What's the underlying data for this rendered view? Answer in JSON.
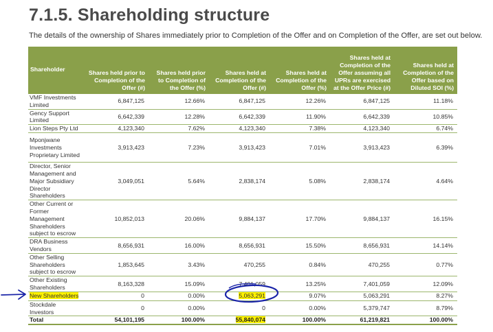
{
  "heading": "7.1.5.  Shareholding structure",
  "intro": "The details of the ownership of Shares immediately prior to Completion of the Offer and on Completion of the Offer, are set out below.",
  "columns": [
    "Shareholder",
    "Shares held prior to Completion of the Offer (#)",
    "Shares held prior to Completion of the Offer (%)",
    "Shares held at Completion of the Offer (#)",
    "Shares held at Completion of the Offer (%)",
    "Shares held at Completion of the Offer assuming all UPRs are exercised at the Offer Price (#)",
    "Shares held at Completion of the Offer based on Diluted SOI (%)"
  ],
  "rows": [
    {
      "name": "VMF Investments Limited",
      "v": [
        "6,847,125",
        "12.66%",
        "6,847,125",
        "12.26%",
        "6,847,125",
        "11.18%"
      ]
    },
    {
      "name": "Gency Support Limited",
      "v": [
        "6,642,339",
        "12.28%",
        "6,642,339",
        "11.90%",
        "6,642,339",
        "10.85%"
      ]
    },
    {
      "name": "Lion Steps Pty Ltd",
      "v": [
        "4,123,340",
        "7.62%",
        "4,123,340",
        "7.38%",
        "4,123,340",
        "6.74%"
      ]
    },
    {
      "name": "Mponjwane Investments Proprietary Limited",
      "v": [
        "3,913,423",
        "7.23%",
        "3,913,423",
        "7.01%",
        "3,913,423",
        "6.39%"
      ]
    },
    {
      "name": "Director, Senior Management and Major Subsidiary Director Shareholders",
      "v": [
        "3,049,051",
        "5.64%",
        "2,838,174",
        "5.08%",
        "2,838,174",
        "4.64%"
      ]
    },
    {
      "name": "Other Current or Former Management Shareholders subject to escrow",
      "v": [
        "10,852,013",
        "20.06%",
        "9,884,137",
        "17.70%",
        "9,884,137",
        "16.15%"
      ]
    },
    {
      "name": "DRA Business Vendors",
      "v": [
        "8,656,931",
        "16.00%",
        "8,656,931",
        "15.50%",
        "8,656,931",
        "14.14%"
      ]
    },
    {
      "name": "Other Selling Shareholders subject to escrow",
      "v": [
        "1,853,645",
        "3.43%",
        "470,255",
        "0.84%",
        "470,255",
        "0.77%"
      ]
    },
    {
      "name": "Other Existing Shareholders",
      "v": [
        "8,163,328",
        "15.09%",
        "7,401,059",
        "13.25%",
        "7,401,059",
        "12.09%"
      ]
    },
    {
      "name": "New Shareholders",
      "v": [
        "0",
        "0.00%",
        "5,063,291",
        "9.07%",
        "5,063,291",
        "8.27%"
      ]
    },
    {
      "name": "Stockdale Investors",
      "v": [
        "0",
        "0.00%",
        "0",
        "0.00%",
        "5,379,747",
        "8.79%"
      ]
    }
  ],
  "total": {
    "name": "Total",
    "v": [
      "54,101,195",
      "100.00%",
      "55,840,074",
      "100.00%",
      "61,219,821",
      "100.00%"
    ]
  },
  "colors": {
    "header_bg": "#8aa04a",
    "row_rule": "#9bb56b",
    "highlight": "#fff200",
    "pen": "#1a24a8"
  }
}
